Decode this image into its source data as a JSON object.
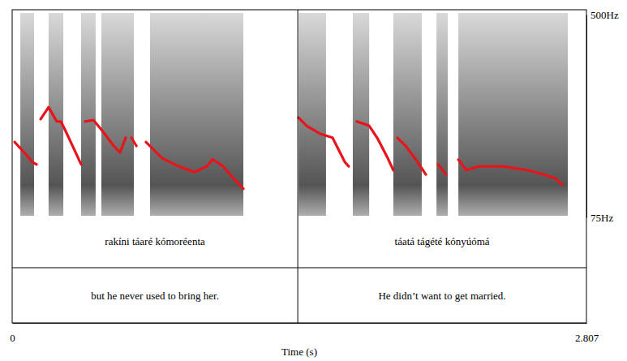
{
  "chart_data": {
    "type": "line",
    "x_label": "Time (s)",
    "xlim": [
      0,
      2.807
    ],
    "xticks": [
      0,
      2.807
    ],
    "ylim": [
      75,
      500
    ],
    "yticks": [
      {
        "value": 75,
        "label": "75Hz"
      },
      {
        "value": 500,
        "label": "500Hz"
      }
    ],
    "color": "#e8141a",
    "x": [
      0.012,
      0.059,
      0.099,
      0.119,
      null,
      0.139,
      0.178,
      0.218,
      0.238,
      0.258,
      0.305,
      0.337,
      null,
      0.357,
      0.397,
      0.436,
      0.496,
      0.527,
      0.555,
      null,
      0.583,
      0.607,
      null,
      0.654,
      0.734,
      0.813,
      0.892,
      0.952,
      0.979,
      1.031,
      1.09,
      1.13,
      null,
      1.4,
      1.439,
      1.507,
      1.566,
      1.626,
      1.645,
      null,
      1.685,
      1.745,
      1.784,
      1.836,
      1.863,
      null,
      1.883,
      1.923,
      1.982,
      2.022,
      null,
      2.082,
      2.121,
      null,
      2.181,
      2.22,
      2.28,
      2.399,
      2.518,
      2.597,
      2.656,
      2.688
    ],
    "values": [
      233,
      211,
      191,
      186,
      null,
      281,
      306,
      276,
      276,
      259,
      216,
      186,
      null,
      276,
      279,
      259,
      225,
      211,
      242,
      null,
      242,
      225,
      null,
      233,
      199,
      182,
      170,
      182,
      197,
      182,
      153,
      135,
      null,
      284,
      267,
      250,
      242,
      191,
      182,
      null,
      276,
      267,
      242,
      199,
      174,
      null,
      242,
      225,
      191,
      165,
      null,
      186,
      165,
      null,
      196,
      174,
      182,
      182,
      174,
      165,
      157,
      143
    ],
    "spectrogram": {
      "dark_bands": [
        [
          0.04,
          0.107
        ],
        [
          0.178,
          0.25
        ],
        [
          0.337,
          0.408
        ],
        [
          0.436,
          0.595
        ],
        [
          0.674,
          1.13
        ],
        [
          1.4,
          1.534
        ],
        [
          1.665,
          1.745
        ],
        [
          1.863,
          2.002
        ],
        [
          2.074,
          2.129
        ],
        [
          2.181,
          2.716
        ]
      ]
    },
    "tiers": [
      {
        "intervals": [
          {
            "start": 0,
            "end": 1.396,
            "text": "rakíni táaré kómoréenta"
          },
          {
            "start": 1.396,
            "end": 2.807,
            "text": "táatá tágété kónyúómá"
          }
        ]
      },
      {
        "intervals": [
          {
            "start": 0,
            "end": 1.396,
            "text": "but he never used to bring her."
          },
          {
            "start": 1.396,
            "end": 2.807,
            "text": "He didn’t want to get married."
          }
        ]
      }
    ]
  }
}
